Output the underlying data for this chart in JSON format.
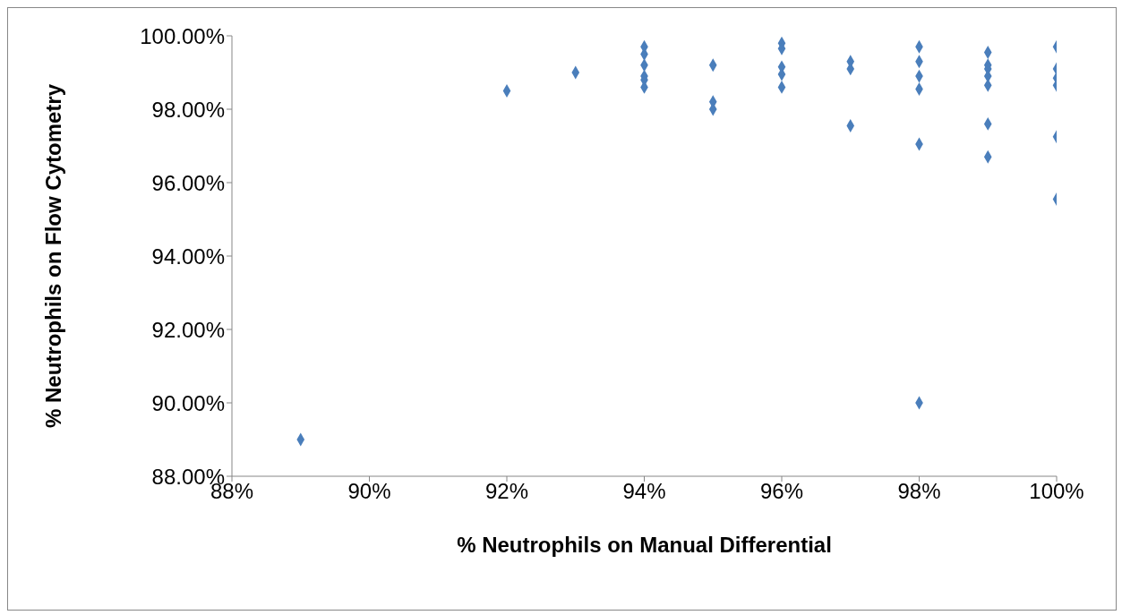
{
  "chart_data": {
    "type": "scatter",
    "xlabel": "% Neutrophils on Manual Differential",
    "ylabel": "% Neutrophils on Flow Cytometry",
    "series": [
      {
        "color": "#4a7ebb",
        "x": [
          89,
          92,
          93,
          94,
          94,
          94,
          94,
          94,
          94,
          95,
          95,
          95,
          96,
          96,
          96,
          96,
          96,
          97,
          97,
          97,
          98,
          98,
          98,
          98,
          98,
          98,
          99,
          99,
          99,
          99,
          99,
          99,
          99,
          100,
          100,
          100,
          100,
          100,
          100
        ],
        "values": [
          89.0,
          98.5,
          99.0,
          99.7,
          99.5,
          99.2,
          98.9,
          98.8,
          98.6,
          99.2,
          98.2,
          98.0,
          99.8,
          99.65,
          99.15,
          98.95,
          98.6,
          99.3,
          99.1,
          97.55,
          99.7,
          99.3,
          98.9,
          98.55,
          97.05,
          90.0,
          99.55,
          99.2,
          99.1,
          98.9,
          98.65,
          97.6,
          96.7,
          99.7,
          99.1,
          98.85,
          98.65,
          97.25,
          95.55
        ]
      }
    ],
    "xlim": [
      88,
      100
    ],
    "xticks": [
      {
        "value": 88,
        "label": "88%"
      },
      {
        "value": 90,
        "label": "90%"
      },
      {
        "value": 92,
        "label": "92%"
      },
      {
        "value": 94,
        "label": "94%"
      },
      {
        "value": 96,
        "label": "96%"
      },
      {
        "value": 98,
        "label": "98%"
      },
      {
        "value": 100,
        "label": "100%"
      }
    ],
    "ylim": [
      88,
      100
    ],
    "yticks": [
      {
        "value": 88,
        "label": "88.00%"
      },
      {
        "value": 90,
        "label": "90.00%"
      },
      {
        "value": 92,
        "label": "92.00%"
      },
      {
        "value": 94,
        "label": "94.00%"
      },
      {
        "value": 96,
        "label": "96.00%"
      },
      {
        "value": 98,
        "label": "98.00%"
      },
      {
        "value": 100,
        "label": "100.00%"
      }
    ],
    "marker": "diamond",
    "grid": false,
    "legend": false
  }
}
